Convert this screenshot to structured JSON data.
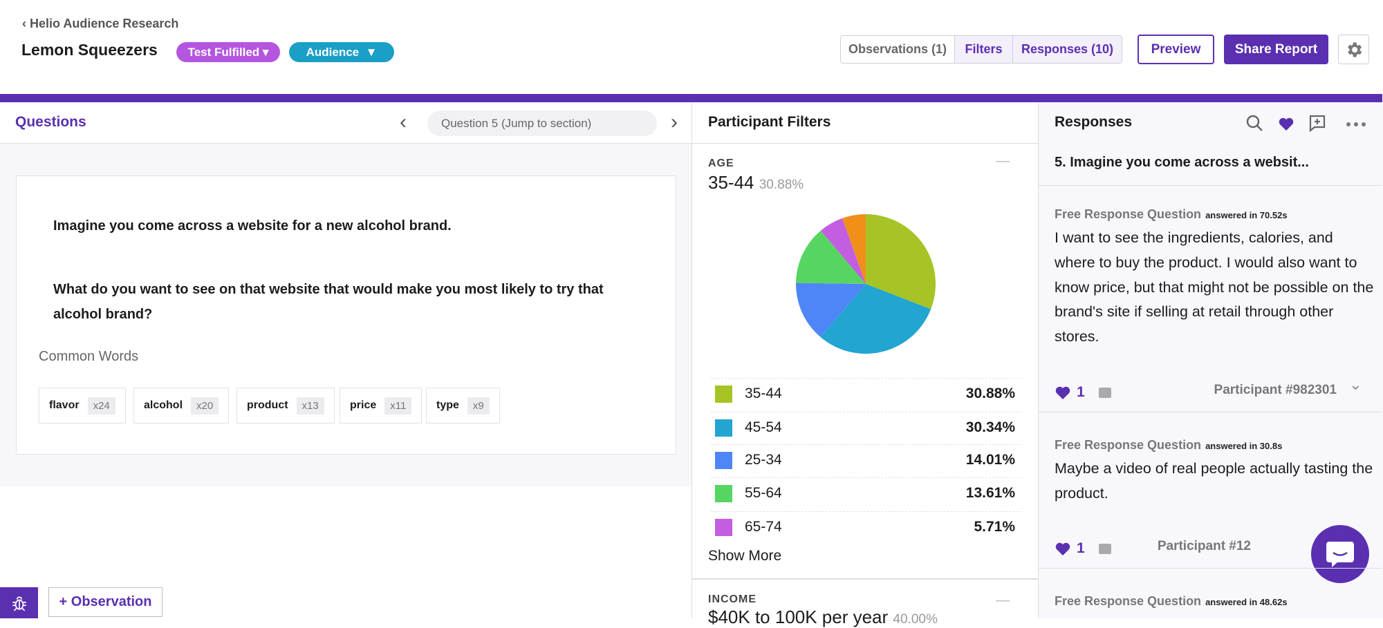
{
  "header": {
    "breadcrumb": "Helio Audience Research",
    "title": "Lemon Squeezers",
    "status_badge": "Test Fulfilled",
    "audience_badge": "Audience"
  },
  "toolbar": {
    "tabs": [
      "Observations (1)",
      "Filters",
      "Responses (10)"
    ],
    "preview": "Preview",
    "share": "Share Report"
  },
  "questions": {
    "title": "Questions",
    "jump": "Question 5 (Jump to section)",
    "paragraphs": [
      "Imagine you come across a website for a new alcohol brand.",
      "What do you want to see on that website that would make you most likely to try that alcohol brand?"
    ],
    "common_words_title": "Common Words",
    "common_words": [
      {
        "word": "flavor",
        "count": "x24"
      },
      {
        "word": "alcohol",
        "count": "x20"
      },
      {
        "word": "product",
        "count": "x13"
      },
      {
        "word": "price",
        "count": "x11"
      },
      {
        "word": "type",
        "count": "x9"
      }
    ]
  },
  "filters": {
    "title": "Participant Filters",
    "age": {
      "type": "pie",
      "label": "AGE",
      "top": "35-44",
      "top_share": "30.88%",
      "categories": [
        "35-44",
        "45-54",
        "25-34",
        "55-64",
        "65-74",
        null
      ],
      "values": [
        30.88,
        30.34,
        14.01,
        13.61,
        5.71,
        5.45
      ],
      "value_labels": [
        "30.88%",
        "30.34%",
        "14.01%",
        "13.61%",
        "5.71%",
        null
      ],
      "colors": [
        "#a6c425",
        "#22a5d1",
        "#4f86f7",
        "#57d562",
        "#c35ee1",
        "#f0901b"
      ],
      "show_more": "Show More"
    },
    "income": {
      "label": "INCOME",
      "top": "$40K to 100K per year",
      "top_share": "40.00%"
    }
  },
  "responses": {
    "title": "Responses",
    "question": "5. Imagine you come across a websit...",
    "items": [
      {
        "type": "Free Response Question",
        "answered": "answered in 70.52s",
        "text": "I want to see the ingredients, calories, and where to buy the product. I would also want to know price, but that might not be possible on the brand's site if selling at retail through other stores.",
        "likes": "1",
        "participant": "Participant #982301"
      },
      {
        "type": "Free Response Question",
        "answered": "answered in 30.8s",
        "text": "Maybe a video of real people actually tasting the product.",
        "likes": "1",
        "participant": "Participant #12"
      },
      {
        "type": "Free Response Question",
        "answered": "answered in 48.62s"
      }
    ]
  },
  "footer": {
    "observation_button": "+ Observation"
  }
}
